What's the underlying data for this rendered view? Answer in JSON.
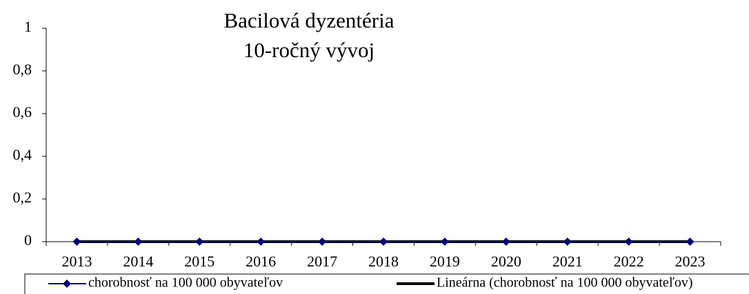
{
  "chart_data": {
    "type": "line",
    "title": [
      "Bacilová dyzentéria",
      "10-ročný vývoj"
    ],
    "categories": [
      "2013",
      "2014",
      "2015",
      "2016",
      "2017",
      "2018",
      "2019",
      "2020",
      "2021",
      "2022",
      "2023"
    ],
    "series": [
      {
        "name": "chorobnosť na 100 000 obyvateľov",
        "color": "#000080",
        "marker": "diamond",
        "values": [
          0,
          0,
          0,
          0,
          0,
          0,
          0,
          0,
          0,
          0,
          0
        ]
      },
      {
        "name": "Lineárna (chorobnosť na 100 000 obyvateľov)",
        "color": "#000000",
        "marker": "none",
        "values": [
          0,
          0,
          0,
          0,
          0,
          0,
          0,
          0,
          0,
          0,
          0
        ]
      }
    ],
    "ylim": [
      0,
      1
    ],
    "yticks": [
      0,
      {
        "value": 0.2,
        "label": "0,2"
      },
      {
        "value": 0.4,
        "label": "0,4"
      },
      {
        "value": 0.6,
        "label": "0,6"
      },
      {
        "value": 0.8,
        "label": "0,8"
      },
      1
    ],
    "grid": false,
    "legend": "bottom"
  }
}
